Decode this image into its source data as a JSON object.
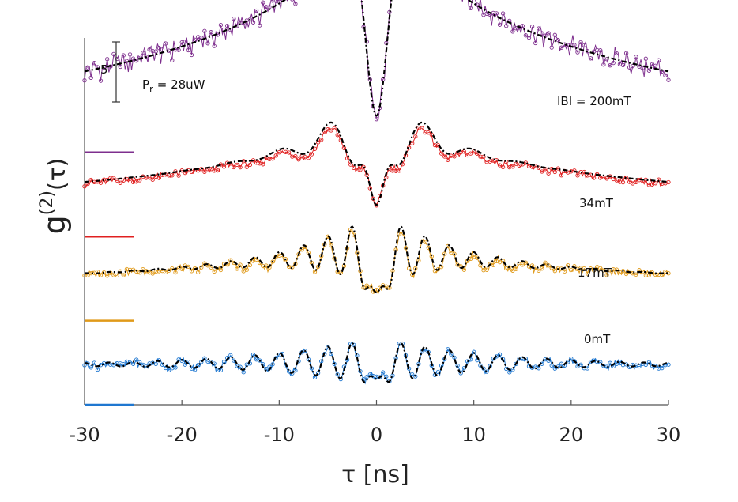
{
  "chart_data": {
    "type": "line",
    "title": "",
    "xlabel": "τ [ns]",
    "ylabel": "g(2)(τ)",
    "ylabel_main": "g",
    "ylabel_sup": "(2)",
    "ylabel_arg": "(τ)",
    "xlim": [
      -30,
      30
    ],
    "xticks": [
      -30,
      -20,
      -10,
      0,
      10,
      20,
      30
    ],
    "xtick_labels": [
      "-30",
      "-20",
      "-10",
      "0",
      "10",
      "20",
      "30"
    ],
    "scale_bar_label": "5",
    "scale_bar_value": 5,
    "power_label_main": "P",
    "power_label_sub": "r",
    "power_label_rest": " = 28uW",
    "fit_style": "dashed black",
    "series": [
      {
        "name": "|B| = 200mT",
        "label": "IBI = 200mT",
        "field_mT": 200,
        "color": "#7E2F8E",
        "offset": 21,
        "baseline_level": 21,
        "model": {
          "amp": 10.8,
          "tau_env": 6,
          "wide": 14.0,
          "wide_tau": 22,
          "narrow": 6.7,
          "narrow_tau": 3.4,
          "dip_w": 1.2,
          "osc_freq": 0,
          "osc_decay": 0
        }
      },
      {
        "name": "34mT",
        "label": "34mT",
        "field_mT": 34,
        "color": "#E02020",
        "offset": 14,
        "baseline_level": 14,
        "model": {
          "amp": 5.8,
          "tau_env": 5,
          "wide": 6.2,
          "wide_tau": 20,
          "narrow": 0.8,
          "narrow_tau": 3.0,
          "dip_w": 1.1,
          "osc_freq": 0.2,
          "osc_decay": 3.5
        }
      },
      {
        "name": "17mT",
        "label": "17mT",
        "field_mT": 17,
        "color": "#E09A1A",
        "offset": 7,
        "baseline_level": 7,
        "model": {
          "amp": 3.8,
          "tau_env": 6,
          "wide": 3.0,
          "wide_tau": 22,
          "narrow": 0.0,
          "narrow_tau": 3.0,
          "dip_w": 1.0,
          "osc_freq": 0.4,
          "osc_decay": 6
        }
      },
      {
        "name": "0mT",
        "label": "0mT",
        "field_mT": 0,
        "color": "#1F77D0",
        "offset": 0,
        "baseline_level": 0,
        "model": {
          "amp": 2.2,
          "tau_env": 9,
          "wide": 0.5,
          "wide_tau": 30,
          "narrow": 0.0,
          "narrow_tau": 3.0,
          "dip_w": 0.9,
          "osc_freq": 0.4,
          "osc_decay": 11
        }
      }
    ]
  }
}
